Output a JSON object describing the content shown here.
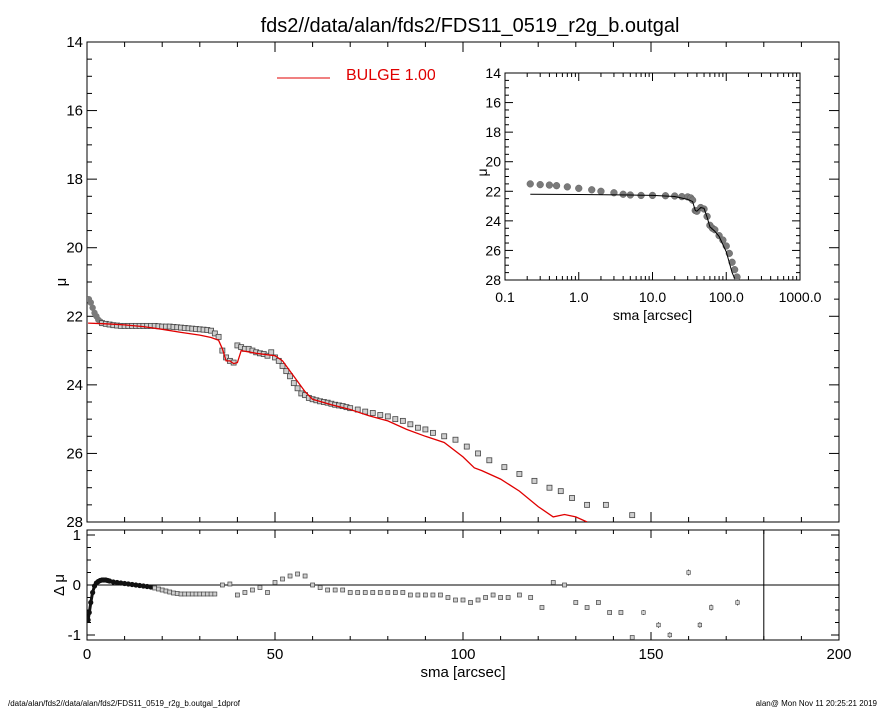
{
  "title": "fds2//data/alan/fds2/FDS11_0519_r2g_b.outgal",
  "footer": {
    "left": "/data/alan/fds2//data/alan/fds2/FDS11_0519_r2g_b.outgal_1dprof",
    "right": "alan@  Mon Nov 11 20:25:21 2019"
  },
  "colors": {
    "model": "#e00000",
    "points": "#7a7a7a",
    "residual_inner": "#111111",
    "axes": "#000000"
  },
  "chart_data": [
    {
      "id": "main_profile",
      "type": "scatter",
      "xlabel": "",
      "ylabel": "μ",
      "xlim": [
        0,
        200
      ],
      "ylim": [
        28,
        14
      ],
      "yticks": [
        14,
        16,
        18,
        20,
        22,
        24,
        26,
        28
      ],
      "ytick_labels": [
        "14",
        "16",
        "18",
        "20",
        "22",
        "24",
        "26",
        "28"
      ],
      "legend": {
        "label": "BULGE  1.000",
        "placement": "top-center"
      },
      "series": [
        {
          "name": "BULGE  1.000",
          "kind": "line",
          "x": [
            0.3,
            5,
            10,
            15,
            20,
            25,
            30,
            33,
            35,
            36,
            37,
            38,
            39,
            40,
            41,
            45,
            50,
            52,
            55,
            58,
            60,
            65,
            70,
            75,
            80,
            85,
            90,
            95,
            100,
            103,
            105,
            110,
            115,
            120,
            124,
            127,
            130,
            133
          ],
          "y": [
            22.2,
            22.22,
            22.25,
            22.3,
            22.38,
            22.47,
            22.55,
            22.62,
            22.7,
            22.95,
            23.3,
            23.3,
            23.38,
            23.35,
            23.0,
            23.08,
            23.15,
            23.3,
            23.75,
            24.2,
            24.42,
            24.58,
            24.72,
            24.9,
            25.05,
            25.3,
            25.5,
            25.68,
            26.1,
            26.42,
            26.5,
            26.75,
            27.1,
            27.55,
            27.85,
            27.78,
            27.85,
            28.0
          ]
        },
        {
          "name": "",
          "kind": "points",
          "x": [
            0.5,
            1,
            1.5,
            2,
            2.5,
            3,
            3.5,
            4,
            5,
            6,
            7,
            8,
            9,
            10,
            11,
            12,
            13,
            14,
            15,
            16,
            17,
            18,
            19,
            20,
            21,
            22,
            23,
            24,
            25,
            26,
            27,
            28,
            29,
            30,
            31,
            32,
            33,
            34,
            35,
            36,
            37,
            38,
            39,
            40,
            41,
            42,
            43,
            44,
            45,
            46,
            47,
            48,
            49,
            50,
            51,
            52,
            53,
            54,
            55,
            56,
            57,
            58,
            59,
            60,
            61,
            62,
            63,
            64,
            65,
            66,
            67,
            68,
            69,
            70,
            72,
            74,
            76,
            78,
            80,
            82,
            84,
            86,
            88,
            90,
            92,
            95,
            98,
            101,
            104,
            107,
            111,
            115,
            119,
            123,
            126,
            129,
            133,
            138,
            145
          ],
          "y": [
            21.5,
            21.6,
            21.75,
            21.9,
            22.0,
            22.1,
            22.15,
            22.2,
            22.22,
            22.24,
            22.26,
            22.27,
            22.28,
            22.28,
            22.28,
            22.28,
            22.28,
            22.28,
            22.28,
            22.28,
            22.28,
            22.28,
            22.29,
            22.3,
            22.3,
            22.3,
            22.31,
            22.32,
            22.33,
            22.34,
            22.35,
            22.36,
            22.37,
            22.38,
            22.39,
            22.4,
            22.42,
            22.5,
            22.6,
            23.0,
            23.2,
            23.3,
            23.35,
            22.85,
            22.9,
            22.95,
            22.95,
            23.0,
            23.05,
            23.08,
            23.1,
            23.15,
            23.05,
            23.2,
            23.3,
            23.45,
            23.6,
            23.75,
            23.95,
            24.1,
            24.25,
            24.3,
            24.38,
            24.42,
            24.45,
            24.48,
            24.5,
            24.52,
            24.55,
            24.58,
            24.6,
            24.62,
            24.65,
            24.68,
            24.72,
            24.78,
            24.82,
            24.88,
            24.92,
            25.0,
            25.05,
            25.15,
            25.25,
            25.3,
            25.4,
            25.5,
            25.6,
            25.8,
            26.0,
            26.2,
            26.4,
            26.6,
            26.8,
            27.0,
            27.1,
            27.3,
            27.5,
            27.5,
            27.8
          ]
        }
      ]
    },
    {
      "id": "inset_loglog",
      "type": "scatter",
      "xlabel": "sma [arcsec]",
      "ylabel": "μ",
      "xscale": "log",
      "xlim": [
        0.1,
        1000.0
      ],
      "ylim": [
        28,
        14
      ],
      "xticks": [
        0.1,
        1.0,
        10.0,
        100.0,
        1000.0
      ],
      "xtick_labels": [
        "0.1",
        "1.0",
        "10.0",
        "100.0",
        "1000.0"
      ],
      "yticks": [
        14,
        16,
        18,
        20,
        22,
        24,
        26,
        28
      ],
      "ytick_labels": [
        "14",
        "16",
        "18",
        "20",
        "22",
        "24",
        "26",
        "28"
      ],
      "series": [
        {
          "name": "",
          "kind": "points",
          "x": [
            0.22,
            0.3,
            0.4,
            0.5,
            0.7,
            1.0,
            1.5,
            2,
            3,
            4,
            5,
            7,
            10,
            15,
            20,
            25,
            30,
            33,
            35,
            38,
            40,
            45,
            50,
            55,
            60,
            65,
            70,
            80,
            90,
            100,
            110,
            120,
            130,
            140
          ],
          "y": [
            21.5,
            21.55,
            21.58,
            21.62,
            21.7,
            21.8,
            21.9,
            22.0,
            22.1,
            22.2,
            22.25,
            22.28,
            22.28,
            22.3,
            22.32,
            22.36,
            22.38,
            22.45,
            22.6,
            23.3,
            23.35,
            23.1,
            23.2,
            23.7,
            24.3,
            24.5,
            24.6,
            25.0,
            25.3,
            25.7,
            26.2,
            26.8,
            27.3,
            27.8
          ]
        },
        {
          "name": "",
          "kind": "line",
          "x": [
            0.22,
            1,
            5,
            10,
            20,
            30,
            35,
            38,
            40,
            45,
            50,
            55,
            60,
            70,
            80,
            100,
            120,
            130
          ],
          "y": [
            22.2,
            22.22,
            22.25,
            22.28,
            22.35,
            22.55,
            22.7,
            23.3,
            23.35,
            23.1,
            23.15,
            23.75,
            24.4,
            24.7,
            25.05,
            26.1,
            27.5,
            27.9
          ]
        }
      ]
    },
    {
      "id": "residuals",
      "type": "scatter",
      "xlabel": "sma [arcsec]",
      "ylabel": "Δ μ",
      "xlim": [
        0,
        200
      ],
      "ylim": [
        -1.1,
        1.1
      ],
      "xticks": [
        0,
        50,
        100,
        150,
        200
      ],
      "xtick_labels": [
        "0",
        "50",
        "100",
        "150",
        "200"
      ],
      "yticks": [
        -1,
        0,
        1
      ],
      "ytick_labels": [
        "-1",
        "0",
        "1"
      ],
      "zero_line": 0,
      "vertical_line_x": 180,
      "series": [
        {
          "name": "",
          "kind": "inner-thick",
          "x": [
            0.3,
            0.6,
            1.0,
            1.5,
            2.0,
            2.5,
            3.0,
            3.5,
            4.0,
            4.5,
            5.0,
            5.5,
            6.0,
            7.0,
            8.0,
            9.0,
            10.0,
            11.0,
            12.0,
            13.0,
            14.0,
            15.0,
            16.0,
            17.0
          ],
          "y": [
            -0.7,
            -0.55,
            -0.35,
            -0.15,
            -0.02,
            0.04,
            0.07,
            0.09,
            0.1,
            0.1,
            0.1,
            0.09,
            0.08,
            0.06,
            0.05,
            0.04,
            0.03,
            0.02,
            0.01,
            0.0,
            -0.01,
            -0.02,
            -0.03,
            -0.04
          ]
        },
        {
          "name": "",
          "kind": "points",
          "x": [
            18,
            19,
            20,
            21,
            22,
            23,
            24,
            25,
            26,
            27,
            28,
            29,
            30,
            31,
            32,
            33,
            34,
            36,
            38,
            40,
            42,
            44,
            46,
            48,
            50,
            52,
            54,
            56,
            58,
            60,
            62,
            64,
            66,
            68,
            70,
            72,
            74,
            76,
            78,
            80,
            82,
            84,
            86,
            88,
            90,
            92,
            94,
            96,
            98,
            100,
            102,
            104,
            106,
            108,
            110,
            112,
            115,
            118,
            121,
            124,
            127,
            130,
            133,
            136,
            139,
            142,
            145
          ],
          "y": [
            -0.06,
            -0.08,
            -0.1,
            -0.12,
            -0.14,
            -0.16,
            -0.17,
            -0.18,
            -0.18,
            -0.18,
            -0.18,
            -0.18,
            -0.18,
            -0.18,
            -0.18,
            -0.18,
            -0.18,
            0.0,
            0.02,
            -0.2,
            -0.15,
            -0.1,
            -0.05,
            -0.15,
            0.05,
            0.12,
            0.18,
            0.22,
            0.18,
            0.0,
            -0.05,
            -0.1,
            -0.1,
            -0.1,
            -0.15,
            -0.15,
            -0.15,
            -0.15,
            -0.15,
            -0.15,
            -0.15,
            -0.15,
            -0.2,
            -0.2,
            -0.2,
            -0.2,
            -0.2,
            -0.25,
            -0.3,
            -0.3,
            -0.35,
            -0.3,
            -0.25,
            -0.2,
            -0.25,
            -0.25,
            -0.2,
            -0.25,
            -0.45,
            0.05,
            0.0,
            -0.35,
            -0.45,
            -0.35,
            -0.55,
            -0.55,
            -1.05
          ]
        },
        {
          "name": "",
          "kind": "errorbars",
          "x": [
            148,
            152,
            155,
            160,
            163,
            166,
            173
          ],
          "y": [
            -0.55,
            -0.8,
            -1.0,
            0.25,
            -0.8,
            -0.45,
            -0.35
          ],
          "err": [
            0.05,
            0.06,
            0.06,
            0.06,
            0.06,
            0.06,
            0.06
          ]
        }
      ]
    }
  ]
}
